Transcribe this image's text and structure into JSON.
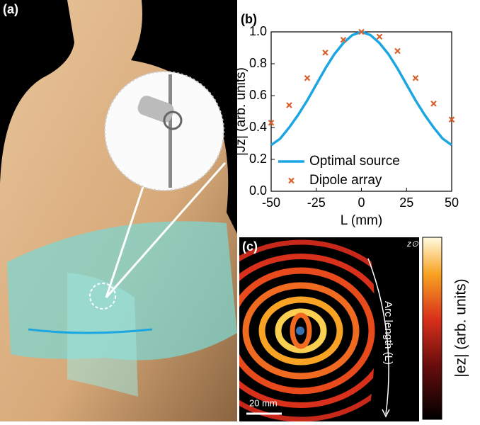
{
  "panel_labels": [
    "(a)",
    "(b)",
    "(c)"
  ],
  "chart_data": {
    "type": "line",
    "xlabel": "L (mm)",
    "ylabel": "|Jz| (arb. units)",
    "x": [
      -50,
      -45,
      -40,
      -35,
      -30,
      -25,
      -20,
      -15,
      -10,
      -5,
      0,
      5,
      10,
      15,
      20,
      25,
      30,
      35,
      40,
      45,
      50
    ],
    "series": [
      {
        "name": "Optimal source",
        "color": "#1ba6e2",
        "values": [
          0.29,
          0.33,
          0.4,
          0.48,
          0.57,
          0.67,
          0.77,
          0.86,
          0.93,
          0.98,
          1.0,
          0.98,
          0.93,
          0.86,
          0.77,
          0.67,
          0.57,
          0.48,
          0.4,
          0.33,
          0.29
        ]
      },
      {
        "name": "Dipole array",
        "type": "scatter",
        "color": "#d9602b",
        "x": [
          -50,
          -40,
          -30,
          -20,
          -10,
          0,
          10,
          20,
          30,
          40,
          50
        ],
        "values": [
          0.43,
          0.54,
          0.71,
          0.87,
          0.95,
          1.0,
          0.97,
          0.88,
          0.71,
          0.55,
          0.45
        ]
      }
    ],
    "xlim": [
      -50,
      50
    ],
    "ylim": [
      0,
      1
    ],
    "xticks": [
      -50,
      -25,
      0,
      25,
      50
    ],
    "yticks": [
      {
        "value": 0,
        "label": "0.0"
      },
      {
        "value": 0.2,
        "label": "0.2"
      },
      {
        "value": 0.4,
        "label": "0.4"
      },
      {
        "value": 0.6,
        "label": "0.6"
      },
      {
        "value": 0.8,
        "label": "0.8"
      },
      {
        "value": 1,
        "label": "1.0"
      }
    ]
  },
  "field_map": {
    "axis_symbol": "z⊙",
    "arc_label": "Arc length (L)",
    "scale_bar": "20 mm",
    "colorbar_label": "|ez| (arb. units)"
  }
}
